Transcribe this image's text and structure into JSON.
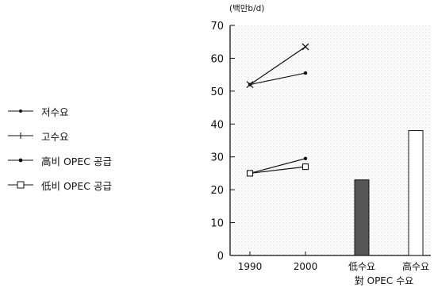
{
  "chart_data": {
    "type": "line",
    "unit_label": "(백만b/d)",
    "ylim": [
      0,
      70
    ],
    "y_ticks": [
      0,
      10,
      20,
      30,
      40,
      50,
      60,
      70
    ],
    "categories": [
      "1990",
      "2000",
      "低수요",
      "高수요"
    ],
    "bar_group_label": "對 OPEC 수요",
    "series": [
      {
        "name": "저수요",
        "marker": "dot",
        "x": [
          "1990",
          "2000"
        ],
        "values": [
          52,
          55.5
        ]
      },
      {
        "name": "고수요",
        "marker": "cross",
        "x": [
          "1990",
          "2000"
        ],
        "values": [
          52,
          63.5
        ]
      },
      {
        "name": "高비 OPEC 공급",
        "marker": "dot",
        "x": [
          "1990",
          "2000"
        ],
        "values": [
          25,
          29.5
        ]
      },
      {
        "name": "低비 OPEC 공급",
        "marker": "square",
        "x": [
          "1990",
          "2000"
        ],
        "values": [
          25,
          27
        ]
      }
    ],
    "bars": [
      {
        "category": "低수요",
        "value": 23,
        "fill": "#555555"
      },
      {
        "category": "高수요",
        "value": 38,
        "fill": "#ffffff"
      }
    ],
    "legend_position": "left",
    "grid": false
  }
}
